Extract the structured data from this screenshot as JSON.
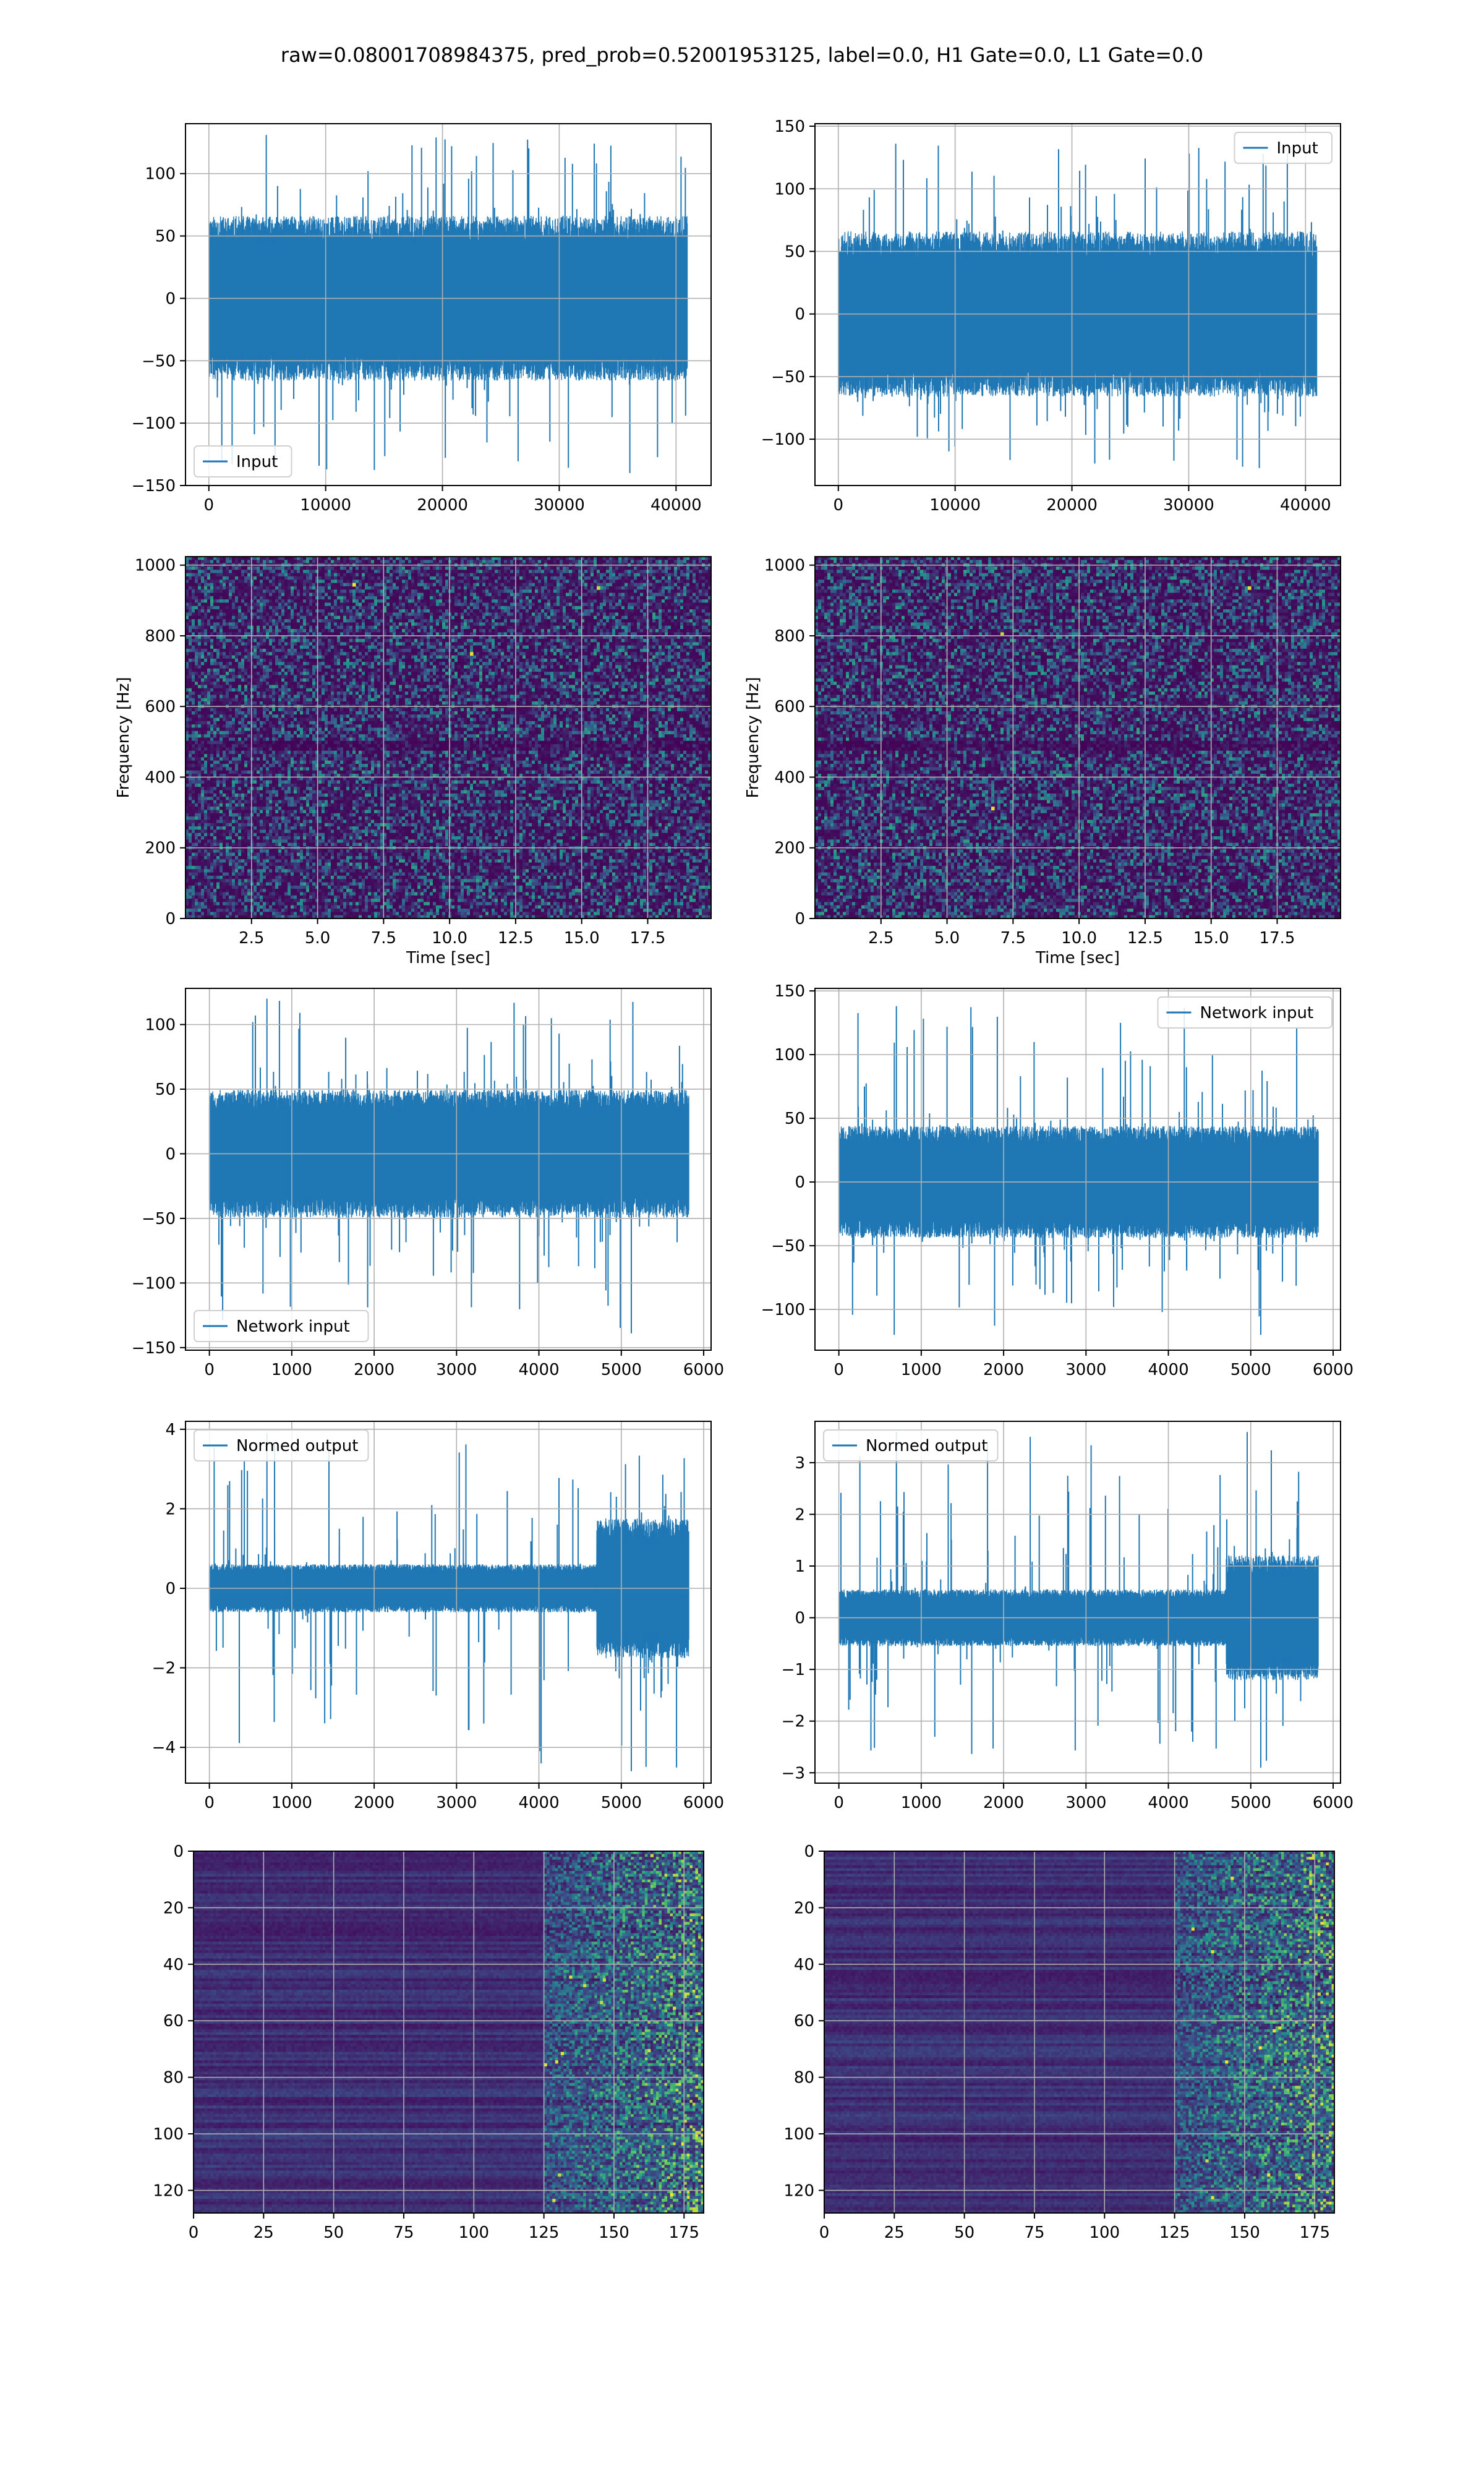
{
  "figure": {
    "title": "raw=0.08001708984375, pred_prob=0.52001953125, label=0.0, H1 Gate=0.0, L1 Gate=0.0"
  },
  "colors": {
    "line": "#1f77b4",
    "grid": "#b0b0b0",
    "viridis_dark": "#440154",
    "viridis_mid": "#3b528b",
    "viridis_teal": "#21918c",
    "viridis_green": "#5ec962",
    "viridis_yellow": "#fde725"
  },
  "chart_data": [
    {
      "id": "raw-input-h1",
      "type": "line",
      "series": [
        {
          "name": "Input",
          "amplitude_core": 60,
          "spike_max": 131,
          "spike_min": -140
        }
      ],
      "x_range": [
        0,
        40960
      ],
      "xlim": [
        -2000,
        43000
      ],
      "ylim": [
        -150,
        140
      ],
      "xticks": [
        0,
        10000,
        20000,
        30000,
        40000
      ],
      "xtick_labels": [
        "0",
        "10000",
        "20000",
        "30000",
        "40000"
      ],
      "yticks": [
        -150,
        -100,
        -50,
        0,
        50,
        100
      ],
      "ytick_labels": [
        "−150",
        "−100",
        "−50",
        "0",
        "50",
        "100"
      ],
      "legend": "Input",
      "legend_loc": "lower-left",
      "grid": true,
      "seed": 11
    },
    {
      "id": "raw-input-l1",
      "type": "line",
      "series": [
        {
          "name": "Input",
          "amplitude_core": 60,
          "spike_max": 136,
          "spike_min": -123
        }
      ],
      "x_range": [
        0,
        40960
      ],
      "xlim": [
        -2000,
        43000
      ],
      "ylim": [
        -137,
        152
      ],
      "xticks": [
        0,
        10000,
        20000,
        30000,
        40000
      ],
      "xtick_labels": [
        "0",
        "10000",
        "20000",
        "30000",
        "40000"
      ],
      "yticks": [
        -100,
        -50,
        0,
        50,
        100,
        150
      ],
      "ytick_labels": [
        "−100",
        "−50",
        "0",
        "50",
        "100",
        "150"
      ],
      "legend": "Input",
      "legend_loc": "upper-right",
      "grid": true,
      "seed": 23
    },
    {
      "id": "spectrogram-h1",
      "type": "heatmap",
      "xlim": [
        0,
        19.9
      ],
      "ylim": [
        0,
        1024
      ],
      "xticks": [
        2.5,
        5,
        7.5,
        10,
        12.5,
        15,
        17.5
      ],
      "xtick_labels": [
        "2.5",
        "5.0",
        "7.5",
        "10.0",
        "12.5",
        "15.0",
        "17.5"
      ],
      "yticks": [
        0,
        200,
        400,
        600,
        800,
        1000
      ],
      "ytick_labels": [
        "0",
        "200",
        "400",
        "600",
        "800",
        "1000"
      ],
      "xlabel": "Time [sec]",
      "ylabel": "Frequency [Hz]",
      "grid": true,
      "seed": 37
    },
    {
      "id": "spectrogram-l1",
      "type": "heatmap",
      "xlim": [
        0,
        19.9
      ],
      "ylim": [
        0,
        1024
      ],
      "xticks": [
        2.5,
        5,
        7.5,
        10,
        12.5,
        15,
        17.5
      ],
      "xtick_labels": [
        "2.5",
        "5.0",
        "7.5",
        "10.0",
        "12.5",
        "15.0",
        "17.5"
      ],
      "yticks": [
        0,
        200,
        400,
        600,
        800,
        1000
      ],
      "ytick_labels": [
        "0",
        "200",
        "400",
        "600",
        "800",
        "1000"
      ],
      "xlabel": "Time [sec]",
      "ylabel": "Frequency [Hz]",
      "grid": true,
      "seed": 41
    },
    {
      "id": "network-input-h1",
      "type": "line",
      "series": [
        {
          "name": "Network input",
          "amplitude_core": 45,
          "spike_max": 120,
          "spike_min": -139
        }
      ],
      "x_range": [
        0,
        5820
      ],
      "xlim": [
        -290,
        6090
      ],
      "ylim": [
        -152,
        128
      ],
      "xticks": [
        0,
        1000,
        2000,
        3000,
        4000,
        5000,
        6000
      ],
      "xtick_labels": [
        "0",
        "1000",
        "2000",
        "3000",
        "4000",
        "5000",
        "6000"
      ],
      "yticks": [
        -150,
        -100,
        -50,
        0,
        50,
        100
      ],
      "ytick_labels": [
        "−150",
        "−100",
        "−50",
        "0",
        "50",
        "100"
      ],
      "legend": "Network input",
      "legend_loc": "lower-left",
      "grid": true,
      "seed": 53
    },
    {
      "id": "network-input-l1",
      "type": "line",
      "series": [
        {
          "name": "Network input",
          "amplitude_core": 40,
          "spike_max": 138,
          "spike_min": -120
        }
      ],
      "x_range": [
        0,
        5820
      ],
      "xlim": [
        -290,
        6090
      ],
      "ylim": [
        -132,
        152
      ],
      "xticks": [
        0,
        1000,
        2000,
        3000,
        4000,
        5000,
        6000
      ],
      "xtick_labels": [
        "0",
        "1000",
        "2000",
        "3000",
        "4000",
        "5000",
        "6000"
      ],
      "yticks": [
        -100,
        -50,
        0,
        50,
        100,
        150
      ],
      "ytick_labels": [
        "−100",
        "−50",
        "0",
        "50",
        "100",
        "150"
      ],
      "legend": "Network input",
      "legend_loc": "upper-right",
      "grid": true,
      "seed": 67
    },
    {
      "id": "normed-output-h1",
      "type": "line",
      "series": [
        {
          "name": "Normed output",
          "amplitude_core": 0.55,
          "burst_start": 4700,
          "burst_amplitude": 1.6,
          "spike_max": 3.9,
          "spike_min": -4.6
        }
      ],
      "x_range": [
        0,
        5820
      ],
      "xlim": [
        -290,
        6090
      ],
      "ylim": [
        -4.9,
        4.2
      ],
      "xticks": [
        0,
        1000,
        2000,
        3000,
        4000,
        5000,
        6000
      ],
      "xtick_labels": [
        "0",
        "1000",
        "2000",
        "3000",
        "4000",
        "5000",
        "6000"
      ],
      "yticks": [
        -4,
        -2,
        0,
        2,
        4
      ],
      "ytick_labels": [
        "−4",
        "−2",
        "0",
        "2",
        "4"
      ],
      "legend": "Normed output",
      "legend_loc": "upper-left",
      "grid": true,
      "seed": 79
    },
    {
      "id": "normed-output-l1",
      "type": "line",
      "series": [
        {
          "name": "Normed output",
          "amplitude_core": 0.5,
          "burst_start": 4700,
          "burst_amplitude": 1.1,
          "spike_max": 3.6,
          "spike_min": -2.9
        }
      ],
      "x_range": [
        0,
        5820
      ],
      "xlim": [
        -290,
        6090
      ],
      "ylim": [
        -3.2,
        3.8
      ],
      "xticks": [
        0,
        1000,
        2000,
        3000,
        4000,
        5000,
        6000
      ],
      "xtick_labels": [
        "0",
        "1000",
        "2000",
        "3000",
        "4000",
        "5000",
        "6000"
      ],
      "yticks": [
        -3,
        -2,
        -1,
        0,
        1,
        2,
        3
      ],
      "ytick_labels": [
        "−3",
        "−2",
        "−1",
        "0",
        "1",
        "2",
        "3"
      ],
      "legend": "Normed output",
      "legend_loc": "upper-left",
      "grid": true,
      "seed": 83
    },
    {
      "id": "feature-map-h1",
      "type": "heatmap",
      "rows": 128,
      "cols": 182,
      "active_from_col": 125,
      "xlim": [
        0,
        182
      ],
      "ylim": [
        128,
        0
      ],
      "xticks": [
        0,
        25,
        50,
        75,
        100,
        125,
        150,
        175
      ],
      "xtick_labels": [
        "0",
        "25",
        "50",
        "75",
        "100",
        "125",
        "150",
        "175"
      ],
      "yticks": [
        0,
        20,
        40,
        60,
        80,
        100,
        120
      ],
      "ytick_labels": [
        "0",
        "20",
        "40",
        "60",
        "80",
        "100",
        "120"
      ],
      "grid": true,
      "seed": 97
    },
    {
      "id": "feature-map-l1",
      "type": "heatmap",
      "rows": 128,
      "cols": 182,
      "active_from_col": 125,
      "xlim": [
        0,
        182
      ],
      "ylim": [
        128,
        0
      ],
      "xticks": [
        0,
        25,
        50,
        75,
        100,
        125,
        150,
        175
      ],
      "xtick_labels": [
        "0",
        "25",
        "50",
        "75",
        "100",
        "125",
        "150",
        "175"
      ],
      "yticks": [
        0,
        20,
        40,
        60,
        80,
        100,
        120
      ],
      "ytick_labels": [
        "0",
        "20",
        "40",
        "60",
        "80",
        "100",
        "120"
      ],
      "grid": true,
      "seed": 101
    }
  ]
}
